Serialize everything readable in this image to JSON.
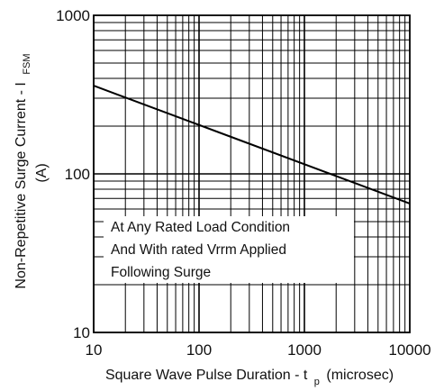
{
  "chart_data": {
    "type": "line",
    "x_scale": "log",
    "y_scale": "log",
    "xlim": [
      10,
      10000
    ],
    "ylim": [
      10,
      1000
    ],
    "grid": true,
    "x_ticks": [
      "10",
      "100",
      "1000",
      "10000"
    ],
    "y_ticks": [
      "10",
      "100",
      "1000"
    ],
    "xlabel": {
      "main": "Square Wave Pulse Duration - t",
      "sub": "p",
      "suffix": "(microsec)"
    },
    "ylabel": {
      "main": "Non-Repetitive Surge Current - I",
      "sub": "FSM",
      "line2": "(A)"
    },
    "series": [
      {
        "x": [
          10,
          10000
        ],
        "y": [
          360,
          65
        ],
        "color": "#000000"
      }
    ],
    "annotation": [
      "At Any Rated Load Condition",
      "And With rated Vrrm Applied",
      "Following Surge"
    ]
  }
}
